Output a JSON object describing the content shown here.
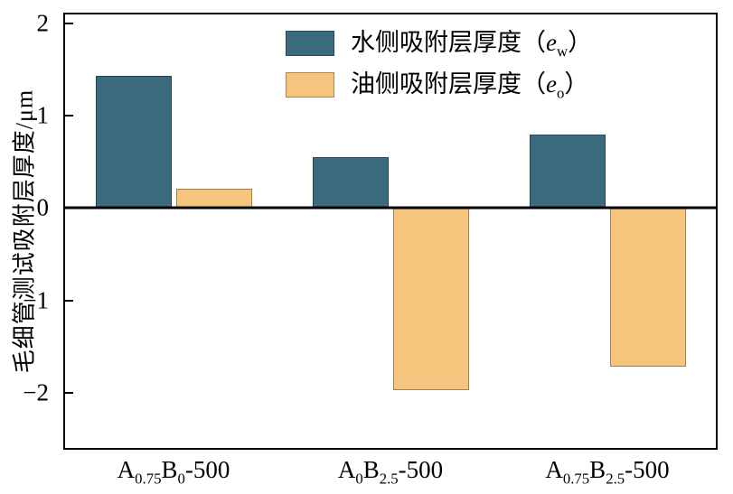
{
  "chart_data": {
    "type": "bar",
    "title": "",
    "ylabel": "毛细管测试吸附层厚度/μm",
    "xlabel": "",
    "ylim": [
      -2.6,
      2.1
    ],
    "yticks": [
      2,
      1,
      0,
      -1,
      -2
    ],
    "zero_line": 0,
    "grid": false,
    "legend_position": "upper center",
    "categories": [
      "A0.75B0-500",
      "A0B2.5-500",
      "A0.75B2.5-500"
    ],
    "category_parts": [
      [
        {
          "t": "A"
        },
        {
          "t": "0.75",
          "sub": true
        },
        {
          "t": "B"
        },
        {
          "t": "0",
          "sub": true
        },
        {
          "t": "-500"
        }
      ],
      [
        {
          "t": "A"
        },
        {
          "t": "0",
          "sub": true
        },
        {
          "t": "B"
        },
        {
          "t": "2.5",
          "sub": true
        },
        {
          "t": "-500"
        }
      ],
      [
        {
          "t": "A"
        },
        {
          "t": "0.75",
          "sub": true
        },
        {
          "t": "B"
        },
        {
          "t": "2.5",
          "sub": true
        },
        {
          "t": "-500"
        }
      ]
    ],
    "series": [
      {
        "name": "水侧吸附层厚度（ew）",
        "name_parts": [
          {
            "t": "水侧吸附层厚度（"
          },
          {
            "t": "e",
            "italic": true
          },
          {
            "t": "w",
            "sub": true
          },
          {
            "t": "）"
          }
        ],
        "color": "#3C6B7E",
        "values": [
          1.43,
          0.55,
          0.8
        ]
      },
      {
        "name": "油侧吸附层厚度（eo）",
        "name_parts": [
          {
            "t": "油侧吸附层厚度（"
          },
          {
            "t": "e",
            "italic": true
          },
          {
            "t": "o",
            "sub": true
          },
          {
            "t": "）"
          }
        ],
        "color": "#F6C57D",
        "values": [
          0.21,
          -1.97,
          -1.72
        ]
      }
    ],
    "bar_edge_color": "rgba(0,0,0,0.35)"
  }
}
